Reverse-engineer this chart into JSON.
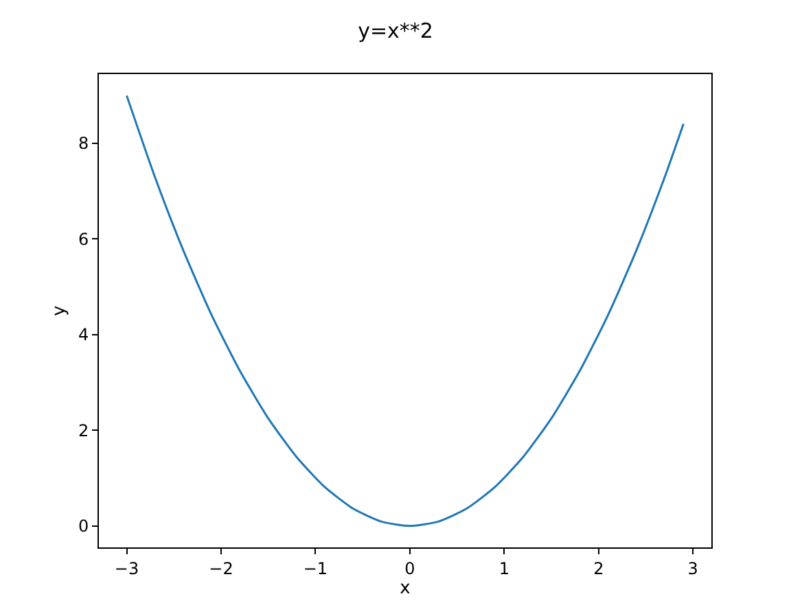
{
  "chart_data": {
    "type": "line",
    "title": "y=x**2",
    "xlabel": "x",
    "ylabel": "y",
    "x": [
      -3,
      -2.7,
      -2.4,
      -2.1,
      -1.8,
      -1.5,
      -1.2,
      -0.9,
      -0.6,
      -0.3,
      0,
      0.3,
      0.6,
      0.9,
      1.2,
      1.5,
      1.8,
      2.1,
      2.4,
      2.7,
      2.9
    ],
    "series": [
      {
        "color": "#1f77b4",
        "values": [
          9,
          7.29,
          5.76,
          4.41,
          3.24,
          2.25,
          1.44,
          0.81,
          0.36,
          0.09,
          0,
          0.09,
          0.36,
          0.81,
          1.44,
          2.25,
          3.24,
          4.41,
          5.76,
          7.29,
          8.41
        ]
      }
    ],
    "xlim": [
      -3.295,
      3.195
    ],
    "ylim": [
      -0.45,
      9.45
    ],
    "xticks": [
      {
        "value": -3,
        "label": "−3"
      },
      {
        "value": -2,
        "label": "−2"
      },
      {
        "value": -1,
        "label": "−1"
      },
      0,
      1,
      2,
      3
    ],
    "yticks": [
      0,
      2,
      4,
      6,
      8
    ]
  }
}
